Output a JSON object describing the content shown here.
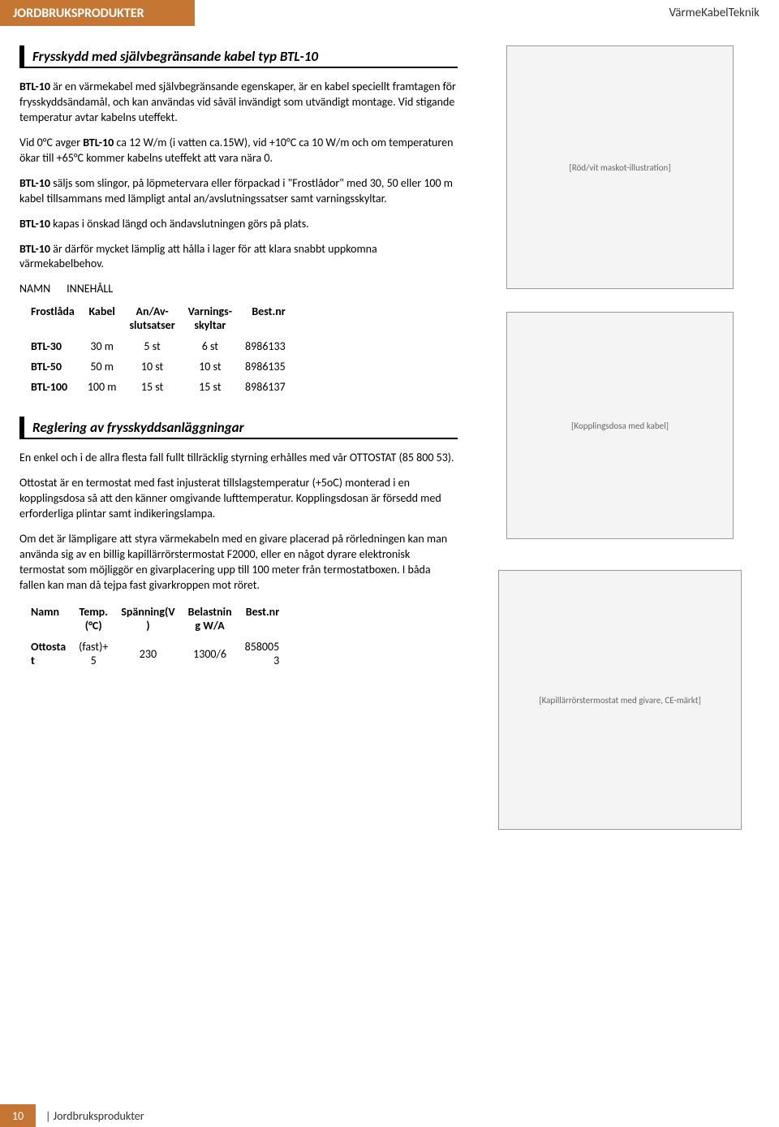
{
  "header": {
    "left": "JORDBRUKSPRODUKTER",
    "right": "VärmeKabelTeknik"
  },
  "section1": {
    "title": "Frysskydd med självbegränsande kabel typ BTL-10",
    "p1_a": "BTL-10",
    "p1_b": " är en värmekabel med självbegränsande egenskaper, är en kabel speciellt framtagen för frysskyddsändamål, och kan användas vid såväl invändigt som utvändigt montage. Vid stigande temperatur avtar kabelns uteffekt.",
    "p2_a": "Vid 0°C avger ",
    "p2_b": "BTL-10",
    "p2_c": " ca 12 W/m (i vatten ca.15W), vid +10°C ca 10 W/m och om temperaturen ökar till +65°C kommer kabelns uteffekt att vara nära 0.",
    "p3_a": "BTL-10",
    "p3_b": " säljs som slingor, på löpmetervara eller förpackad i \"Frostlådor\" med 30, 50 eller 100 m kabel tillsammans med lämpligt antal an/avslutningssatser samt varningsskyltar.",
    "p4_a": "BTL-10",
    "p4_b": " kapas i önskad längd och ändavslutningen görs på plats.",
    "p5_a": "BTL-10",
    "p5_b": " är därför mycket lämplig att hålla i lager för att klara snabbt uppkomna värmekabelbehov.",
    "table_labels": {
      "namn": "NAMN",
      "innehall": "INNEHÅLL"
    },
    "table": {
      "columns": [
        "Frostlåda",
        "Kabel",
        "An/Av-\nslutsatser",
        "Varnings-\nskyltar",
        "Best.nr"
      ],
      "rows": [
        [
          "BTL-30",
          "30 m",
          "5 st",
          "6 st",
          "8986133"
        ],
        [
          "BTL-50",
          "50 m",
          "10 st",
          "10 st",
          "8986135"
        ],
        [
          "BTL-100",
          "100 m",
          "15 st",
          "15 st",
          "8986137"
        ]
      ]
    }
  },
  "section2": {
    "title": "Reglering av frysskyddsanläggningar",
    "p1": "En enkel och i de allra flesta fall fullt tillräcklig styrning erhålles med vår OTTOSTAT (85 800 53).",
    "p2": "Ottostat är en termostat med fast injusterat tillslagstemperatur (+5oC) monterad i en kopplingsdosa så att den känner omgivande lufttemperatur. Kopplingsdosan är försedd med erforderliga plintar samt indikeringslampa.",
    "p3": "Om det är lämpligare att styra värmekabeln med en givare placerad på rörledningen kan man använda sig av en billig kapillärrörstermostat F2000, eller en något dyrare elektronisk termostat som möjliggör en givarplacering upp till 100 meter från termostatboxen. I båda fallen kan man då tejpa fast givarkroppen mot röret.",
    "table": {
      "columns": [
        "Namn",
        "Temp.\n(°C)",
        "Spänning(V\n)",
        "Belastnin\ng W/A",
        "Best.nr"
      ],
      "rows": [
        [
          "Ottosta\nt",
          "(fast)+\n5",
          "230",
          "1300/6",
          "858005\n3"
        ]
      ]
    }
  },
  "images": {
    "img1": "[Röd/vit maskot-illustration]",
    "img2": "[Kopplingsdosa med kabel]",
    "img3": "[Kapillärrörstermostat med givare, CE-märkt]"
  },
  "footer": {
    "page": "10",
    "text": "| Jordbruksprodukter"
  },
  "colors": {
    "accent": "#c57633",
    "text": "#000000",
    "bg": "#ffffff"
  }
}
